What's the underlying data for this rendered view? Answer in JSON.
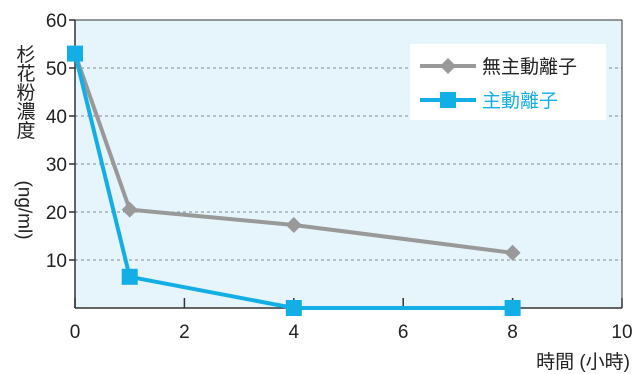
{
  "chart_data": {
    "type": "line",
    "title": "",
    "xlabel": "時間 (小時)",
    "ylabel": "杉花粉濃度(ng/ml)",
    "ylabel_parts": [
      "杉花粉濃度",
      "(ng/ml)"
    ],
    "xlim": [
      0,
      10
    ],
    "ylim": [
      0,
      60
    ],
    "xticks": [
      0,
      2,
      4,
      6,
      8,
      10
    ],
    "yticks": [
      10,
      20,
      30,
      40,
      50,
      60
    ],
    "grid": "horizontal dashed",
    "legend_position": "top-right",
    "background": "#e6f4fb",
    "series": [
      {
        "name": "無主動離子",
        "color": "#999999",
        "marker": "diamond",
        "x": [
          0,
          1,
          4,
          8
        ],
        "values": [
          53,
          20.5,
          17.3,
          11.5
        ]
      },
      {
        "name": "主動離子",
        "color": "#13aee6",
        "marker": "square",
        "x": [
          0,
          1,
          4,
          8
        ],
        "values": [
          53,
          6.5,
          0,
          0
        ]
      }
    ]
  }
}
